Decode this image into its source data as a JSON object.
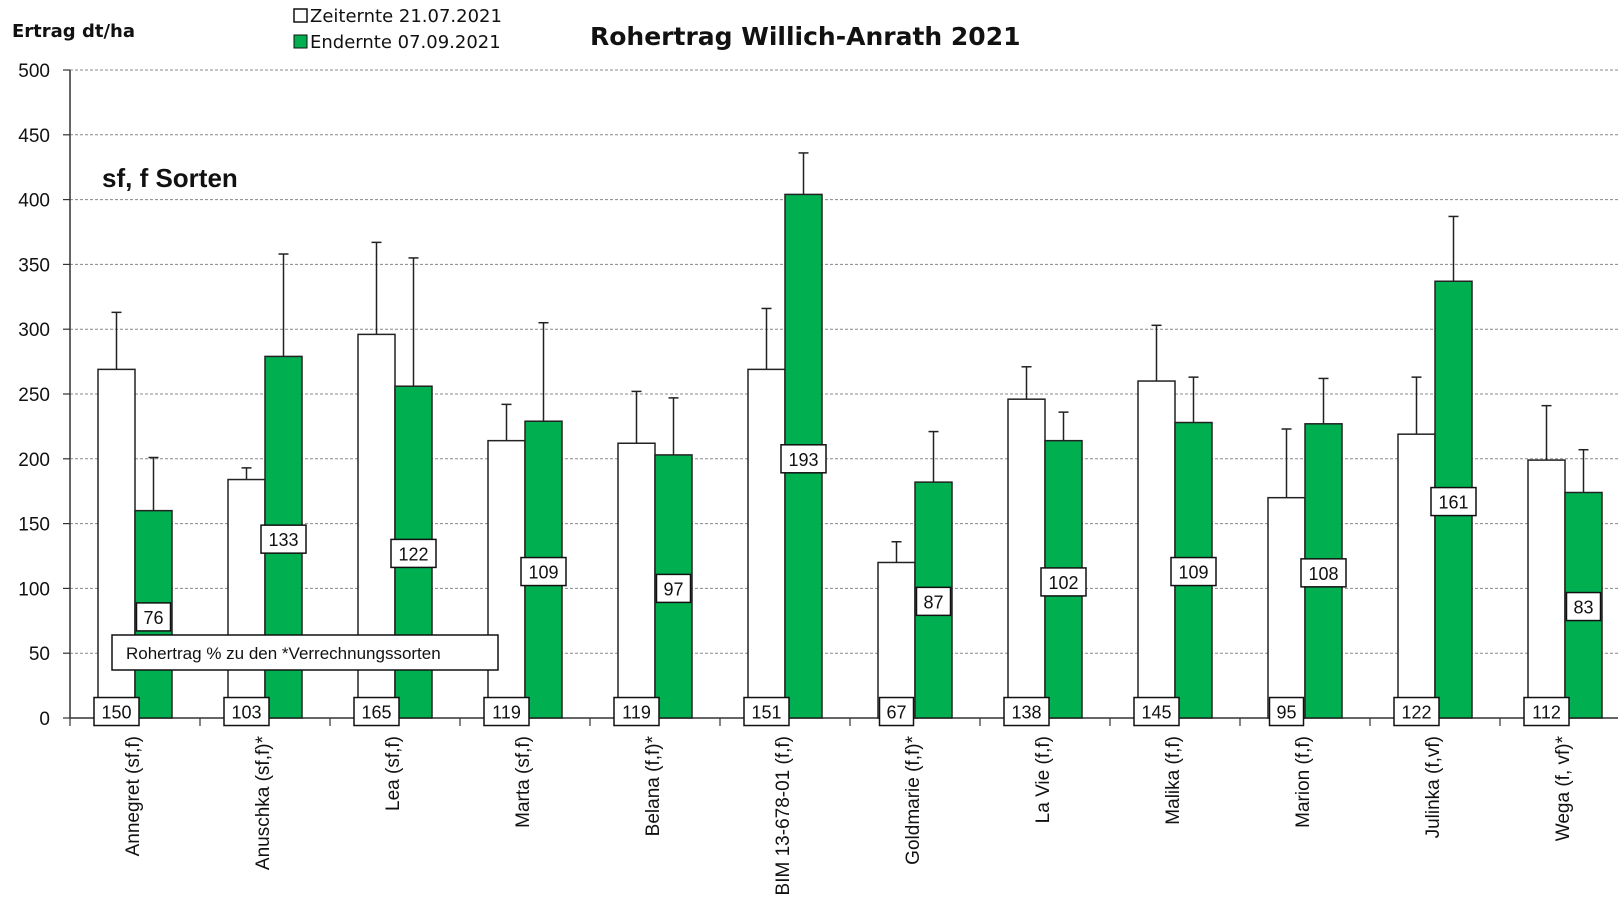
{
  "chart_data": {
    "type": "bar",
    "title": "Rohertrag Willich-Anrath 2021",
    "subtitle": "sf, f Sorten",
    "ylabel": "Ertrag dt/ha",
    "xlabel": "",
    "ylim": [
      0,
      500
    ],
    "yticks": [
      0,
      50,
      100,
      150,
      200,
      250,
      300,
      350,
      400,
      450,
      500
    ],
    "grid": true,
    "legend_position": "top-left",
    "note": "Rohertrag % zu den *Verrechnungssorten",
    "categories": [
      "Annegret (sf,f)",
      "Anuschka (sf,f)*",
      "Lea (sf,f)",
      "Marta (sf,f)",
      "Belana (f,f)*",
      "BIM 13-678-01 (f,f)",
      "Goldmarie (f,f)*",
      "La Vie (f,f)",
      "Malika (f,f)",
      "Marion (f,f)",
      "Julinka (f,vf)",
      "Wega (f, vf)*"
    ],
    "series": [
      {
        "name": "Zeiternte 21.07.2021",
        "color": "#ffffff",
        "values": [
          269,
          184,
          296,
          214,
          212,
          269,
          120,
          246,
          260,
          170,
          219,
          199
        ],
        "error_upper": [
          313,
          193,
          367,
          242,
          252,
          316,
          136,
          271,
          303,
          223,
          263,
          241
        ],
        "labels": [
          "150",
          "103",
          "165",
          "119",
          "119",
          "151",
          "67",
          "138",
          "145",
          "95",
          "122",
          "112"
        ],
        "label_values": [
          5,
          5,
          5,
          5,
          5,
          5,
          5,
          5,
          5,
          5,
          5,
          5
        ]
      },
      {
        "name": "Endernte 07.09.2021",
        "color": "#00b050",
        "values": [
          160,
          279,
          256,
          229,
          203,
          404,
          182,
          214,
          228,
          227,
          337,
          174
        ],
        "error_upper": [
          201,
          358,
          355,
          305,
          247,
          436,
          221,
          236,
          263,
          262,
          387,
          207
        ],
        "labels": [
          "76",
          "133",
          "122",
          "109",
          "97",
          "193",
          "87",
          "102",
          "109",
          "108",
          "161",
          "83"
        ],
        "label_values": [
          78,
          138,
          127,
          113,
          100,
          200,
          90,
          105,
          113,
          112,
          167,
          86
        ]
      }
    ]
  }
}
